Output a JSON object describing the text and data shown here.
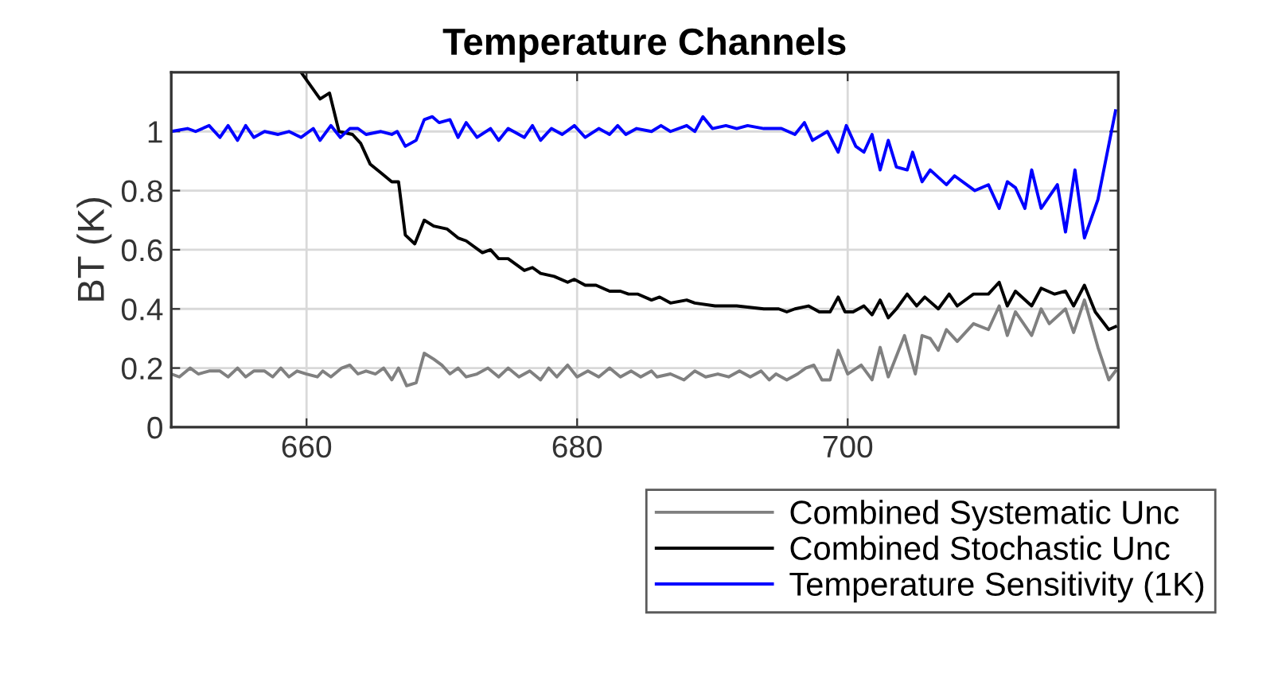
{
  "chart_data": {
    "type": "line",
    "title": "Temperature Channels",
    "ylabel": "BT (K)",
    "xlim": [
      650,
      720
    ],
    "xticks": [
      660,
      680,
      700
    ],
    "ylim": [
      0,
      1.2
    ],
    "yticks": [
      0,
      0.2,
      0.4,
      0.6,
      0.8,
      1
    ],
    "grid": true,
    "legend": "bottom right",
    "line_style": "solid",
    "series": [
      {
        "name": "Combined Systematic Unc",
        "color": "#808080",
        "x": [
          650.0,
          650.6,
          651.4,
          652.0,
          652.8,
          653.6,
          654.2,
          654.9,
          655.5,
          656.1,
          656.9,
          657.5,
          658.1,
          658.7,
          659.3,
          660.0,
          660.8,
          661.2,
          661.8,
          662.6,
          663.2,
          663.8,
          664.4,
          665.1,
          665.7,
          666.3,
          666.8,
          667.4,
          668.1,
          668.7,
          669.4,
          670.0,
          670.6,
          671.2,
          671.8,
          672.6,
          673.4,
          674.2,
          674.9,
          675.7,
          676.5,
          677.3,
          677.9,
          678.5,
          679.3,
          680.0,
          680.8,
          681.6,
          682.4,
          683.2,
          684.0,
          684.7,
          685.5,
          685.9,
          686.9,
          687.9,
          688.7,
          689.5,
          690.4,
          691.2,
          692.0,
          692.8,
          693.6,
          694.2,
          694.7,
          695.5,
          696.3,
          696.9,
          697.5,
          698.1,
          698.7,
          699.3,
          700.0,
          701.0,
          701.8,
          702.4,
          703.0,
          704.2,
          705.0,
          705.5,
          706.1,
          706.7,
          707.3,
          708.1,
          709.3,
          710.4,
          711.2,
          711.8,
          712.4,
          713.6,
          714.3,
          714.9,
          716.1,
          716.7,
          717.5,
          718.5,
          719.3,
          719.8
        ],
        "values": [
          0.18,
          0.17,
          0.2,
          0.18,
          0.19,
          0.19,
          0.17,
          0.2,
          0.17,
          0.19,
          0.19,
          0.17,
          0.2,
          0.17,
          0.19,
          0.18,
          0.17,
          0.19,
          0.17,
          0.2,
          0.21,
          0.18,
          0.19,
          0.18,
          0.2,
          0.16,
          0.2,
          0.14,
          0.15,
          0.25,
          0.23,
          0.21,
          0.18,
          0.2,
          0.17,
          0.18,
          0.2,
          0.17,
          0.2,
          0.17,
          0.19,
          0.16,
          0.2,
          0.17,
          0.21,
          0.17,
          0.19,
          0.17,
          0.2,
          0.17,
          0.19,
          0.17,
          0.19,
          0.17,
          0.18,
          0.16,
          0.19,
          0.17,
          0.18,
          0.17,
          0.19,
          0.17,
          0.19,
          0.16,
          0.18,
          0.16,
          0.18,
          0.2,
          0.21,
          0.16,
          0.16,
          0.26,
          0.18,
          0.21,
          0.16,
          0.27,
          0.17,
          0.31,
          0.18,
          0.31,
          0.3,
          0.26,
          0.33,
          0.29,
          0.35,
          0.33,
          0.41,
          0.31,
          0.39,
          0.31,
          0.4,
          0.35,
          0.4,
          0.32,
          0.43,
          0.27,
          0.16,
          0.19
        ]
      },
      {
        "name": "Combined Stochastic Unc",
        "color": "#000000",
        "x": [
          659.6,
          661.0,
          661.7,
          662.4,
          663.4,
          664.0,
          664.7,
          665.5,
          666.3,
          666.8,
          667.3,
          668.0,
          668.7,
          669.4,
          670.4,
          671.2,
          671.8,
          673.0,
          673.6,
          674.2,
          674.9,
          676.1,
          676.7,
          677.3,
          678.3,
          679.3,
          679.8,
          680.6,
          681.4,
          682.4,
          683.2,
          683.8,
          684.5,
          685.5,
          686.1,
          686.9,
          688.1,
          688.7,
          690.2,
          691.0,
          691.8,
          693.8,
          694.9,
          695.5,
          696.1,
          697.1,
          697.9,
          698.7,
          699.3,
          699.8,
          700.4,
          701.2,
          701.8,
          702.4,
          703.0,
          703.6,
          704.4,
          705.1,
          705.7,
          706.7,
          707.5,
          708.1,
          709.3,
          710.4,
          711.2,
          711.8,
          712.4,
          713.6,
          714.3,
          715.3,
          716.1,
          716.7,
          717.5,
          718.3,
          719.3,
          719.8
        ],
        "values": [
          1.2,
          1.11,
          1.13,
          1.0,
          0.99,
          0.96,
          0.89,
          0.86,
          0.83,
          0.83,
          0.65,
          0.62,
          0.7,
          0.68,
          0.67,
          0.64,
          0.63,
          0.59,
          0.6,
          0.57,
          0.57,
          0.53,
          0.54,
          0.52,
          0.51,
          0.49,
          0.5,
          0.48,
          0.48,
          0.46,
          0.46,
          0.45,
          0.45,
          0.43,
          0.44,
          0.42,
          0.43,
          0.42,
          0.41,
          0.41,
          0.41,
          0.4,
          0.4,
          0.39,
          0.4,
          0.41,
          0.39,
          0.39,
          0.44,
          0.39,
          0.39,
          0.41,
          0.38,
          0.43,
          0.37,
          0.4,
          0.45,
          0.41,
          0.44,
          0.4,
          0.45,
          0.41,
          0.45,
          0.45,
          0.49,
          0.41,
          0.46,
          0.41,
          0.47,
          0.45,
          0.46,
          0.41,
          0.48,
          0.39,
          0.33,
          0.34
        ]
      },
      {
        "name": "Temperature Sensitivity (1K)",
        "color": "#0000ff",
        "x": [
          650.0,
          651.2,
          651.8,
          652.8,
          653.6,
          654.2,
          654.9,
          655.5,
          656.1,
          656.9,
          657.9,
          658.7,
          659.6,
          660.5,
          661.0,
          661.8,
          662.5,
          663.2,
          663.8,
          664.4,
          665.5,
          666.3,
          666.7,
          667.3,
          668.1,
          668.7,
          669.3,
          669.8,
          670.6,
          671.2,
          671.8,
          672.6,
          673.6,
          674.2,
          674.9,
          676.1,
          676.7,
          677.3,
          678.1,
          678.9,
          679.8,
          680.6,
          681.6,
          682.4,
          683.0,
          683.6,
          684.4,
          685.5,
          686.2,
          686.9,
          688.1,
          688.7,
          689.3,
          690.0,
          691.0,
          691.8,
          692.6,
          693.8,
          695.1,
          696.1,
          696.8,
          697.4,
          698.5,
          699.3,
          699.9,
          700.6,
          701.2,
          701.8,
          702.4,
          703.0,
          703.6,
          704.4,
          704.8,
          705.5,
          706.1,
          707.3,
          707.9,
          709.4,
          710.4,
          711.2,
          711.8,
          712.4,
          713.1,
          713.6,
          714.3,
          715.5,
          716.1,
          716.8,
          717.5,
          718.5,
          719.8
        ],
        "values": [
          1.0,
          1.01,
          1.0,
          1.02,
          0.98,
          1.02,
          0.97,
          1.02,
          0.98,
          1.0,
          0.99,
          1.0,
          0.98,
          1.01,
          0.97,
          1.02,
          0.98,
          1.01,
          1.01,
          0.99,
          1.0,
          0.99,
          1.0,
          0.95,
          0.97,
          1.04,
          1.05,
          1.03,
          1.04,
          0.98,
          1.03,
          0.98,
          1.01,
          0.97,
          1.01,
          0.98,
          1.02,
          0.97,
          1.01,
          0.99,
          1.02,
          0.98,
          1.01,
          0.99,
          1.02,
          0.99,
          1.01,
          1.0,
          1.02,
          1.0,
          1.02,
          1.0,
          1.05,
          1.01,
          1.02,
          1.01,
          1.02,
          1.01,
          1.01,
          0.99,
          1.03,
          0.97,
          1.0,
          0.93,
          1.02,
          0.95,
          0.93,
          0.99,
          0.87,
          0.97,
          0.88,
          0.87,
          0.93,
          0.83,
          0.87,
          0.82,
          0.85,
          0.8,
          0.82,
          0.74,
          0.83,
          0.81,
          0.74,
          0.87,
          0.74,
          0.82,
          0.66,
          0.87,
          0.64,
          0.77,
          1.07
        ]
      }
    ]
  }
}
